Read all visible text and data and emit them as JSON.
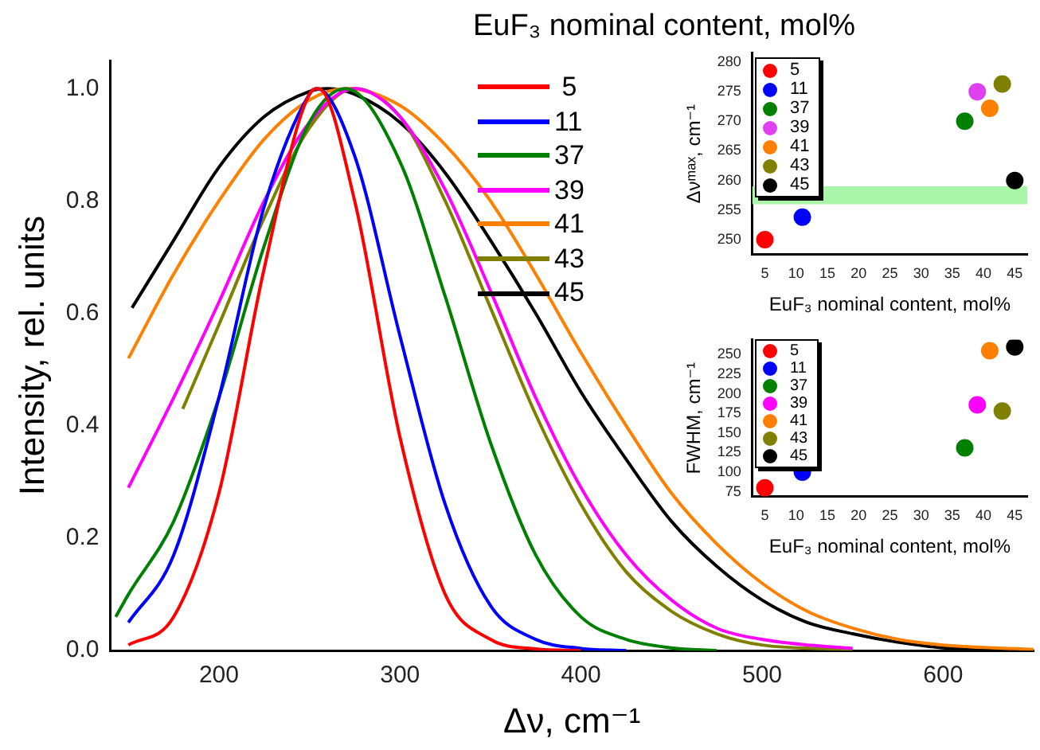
{
  "chart_data": [
    {
      "type": "line",
      "xlabel": "Δν, cm⁻¹",
      "ylabel": "Intensity, rel. units",
      "legend_title": "EuF₃ nominal content, mol%",
      "legend": "top",
      "marker": "none",
      "line_style": "solid",
      "grid": false,
      "xlim": [
        140,
        650
      ],
      "xticks": [
        200,
        300,
        400,
        500,
        600
      ],
      "ylim": [
        0,
        1.05
      ],
      "yticks": [
        {
          "value": 0,
          "label": "0.0"
        },
        {
          "value": 0.2,
          "label": "0.2"
        },
        {
          "value": 0.4,
          "label": "0.4"
        },
        {
          "value": 0.6,
          "label": "0.6"
        },
        {
          "value": 0.8,
          "label": "0.8"
        },
        {
          "value": 1,
          "label": "1.0"
        }
      ],
      "series": [
        {
          "name": " 5",
          "color": "#ff0000",
          "x": [
            150,
            175,
            200,
            225,
            250,
            255,
            275,
            300,
            325,
            350,
            375,
            400
          ],
          "values": [
            0.01,
            0.06,
            0.28,
            0.68,
            0.99,
            1.0,
            0.8,
            0.38,
            0.1,
            0.02,
            0.003,
            0
          ]
        },
        {
          "name": "11",
          "color": "#0000ff",
          "x": [
            150,
            175,
            200,
            225,
            250,
            254,
            275,
            300,
            325,
            350,
            375,
            400,
            425
          ],
          "values": [
            0.05,
            0.17,
            0.45,
            0.79,
            0.99,
            1.0,
            0.88,
            0.56,
            0.26,
            0.08,
            0.02,
            0.004,
            0
          ]
        },
        {
          "name": "37",
          "color": "#008000",
          "x": [
            143,
            150,
            175,
            200,
            225,
            250,
            270,
            300,
            325,
            350,
            375,
            400,
            425,
            450,
            475
          ],
          "values": [
            0.06,
            0.1,
            0.23,
            0.45,
            0.72,
            0.94,
            1.0,
            0.87,
            0.63,
            0.37,
            0.17,
            0.06,
            0.02,
            0.005,
            0
          ]
        },
        {
          "name": "39",
          "color": "#ff00ff",
          "x": [
            150,
            175,
            200,
            225,
            250,
            275,
            300,
            325,
            350,
            375,
            400,
            425,
            450,
            475,
            500,
            525,
            550
          ],
          "values": [
            0.29,
            0.45,
            0.62,
            0.8,
            0.94,
            1.0,
            0.95,
            0.82,
            0.64,
            0.45,
            0.29,
            0.17,
            0.09,
            0.04,
            0.02,
            0.01,
            0.004
          ]
        },
        {
          "name": "41",
          "color": "#ff8000",
          "x": [
            150,
            175,
            200,
            225,
            250,
            270,
            300,
            325,
            350,
            375,
            400,
            425,
            450,
            475,
            500,
            525,
            550,
            575,
            600,
            650
          ],
          "values": [
            0.52,
            0.67,
            0.8,
            0.91,
            0.98,
            1.0,
            0.97,
            0.9,
            0.8,
            0.67,
            0.53,
            0.4,
            0.28,
            0.19,
            0.12,
            0.07,
            0.04,
            0.02,
            0.01,
            0.002
          ]
        },
        {
          "name": "43",
          "color": "#808000",
          "x": [
            180,
            200,
            225,
            250,
            275,
            300,
            325,
            350,
            375,
            400,
            425,
            450,
            475,
            500,
            550
          ],
          "values": [
            0.43,
            0.58,
            0.77,
            0.93,
            1.0,
            0.95,
            0.8,
            0.61,
            0.42,
            0.26,
            0.14,
            0.07,
            0.03,
            0.01,
            0.002
          ]
        },
        {
          "name": "45",
          "color": "#000000",
          "x": [
            152,
            175,
            200,
            225,
            250,
            260,
            275,
            300,
            325,
            350,
            375,
            400,
            425,
            450,
            475,
            500,
            525,
            550,
            575,
            600,
            650
          ],
          "values": [
            0.61,
            0.73,
            0.86,
            0.95,
            0.995,
            1.0,
            0.99,
            0.94,
            0.85,
            0.73,
            0.6,
            0.46,
            0.34,
            0.23,
            0.15,
            0.09,
            0.05,
            0.03,
            0.015,
            0.005,
            0.001
          ]
        }
      ]
    },
    {
      "type": "scatter",
      "xlabel": "EuF₃ nominal content, mol%",
      "ylabel": "Δνᵐᵃˣ, cm⁻¹",
      "legend": "top left",
      "marker": "circle",
      "grid": false,
      "xlim": [
        3,
        47
      ],
      "xticks": [
        5,
        10,
        15,
        20,
        25,
        30,
        35,
        40,
        45
      ],
      "ylim": [
        247.5,
        281.5
      ],
      "yticks": [
        250,
        255,
        260,
        265,
        270,
        275,
        280
      ],
      "bands": [
        {
          "axis": "y",
          "from": 256,
          "to": 259,
          "color": "#aaf5aa"
        }
      ],
      "series": [
        {
          "name": "5",
          "color": "#ff0000",
          "x": [
            5
          ],
          "values": [
            250
          ]
        },
        {
          "name": "11",
          "color": "#0000ff",
          "x": [
            11
          ],
          "values": [
            253.8
          ]
        },
        {
          "name": "37",
          "color": "#008000",
          "x": [
            37
          ],
          "values": [
            270
          ]
        },
        {
          "name": "39",
          "color": "#e040f0",
          "x": [
            39
          ],
          "values": [
            275
          ]
        },
        {
          "name": "41",
          "color": "#ff8000",
          "x": [
            41
          ],
          "values": [
            272.2
          ]
        },
        {
          "name": "43",
          "color": "#808000",
          "x": [
            43
          ],
          "values": [
            276.3
          ]
        },
        {
          "name": "45",
          "color": "#000000",
          "x": [
            45
          ],
          "values": [
            260
          ]
        }
      ]
    },
    {
      "type": "scatter",
      "xlabel": "EuF₃ nominal content, mol%",
      "ylabel": "FWHM, cm⁻¹",
      "legend": "top left",
      "marker": "circle",
      "grid": false,
      "xlim": [
        3,
        47
      ],
      "xticks": [
        5,
        10,
        15,
        20,
        25,
        30,
        35,
        40,
        45
      ],
      "ylim": [
        69,
        269
      ],
      "yticks": [
        75,
        100,
        125,
        150,
        175,
        200,
        225,
        250
      ],
      "series": [
        {
          "name": "5",
          "color": "#ff0000",
          "x": [
            5
          ],
          "values": [
            80
          ]
        },
        {
          "name": "11",
          "color": "#0000ff",
          "x": [
            11
          ],
          "values": [
            100
          ]
        },
        {
          "name": "37",
          "color": "#008000",
          "x": [
            37
          ],
          "values": [
            131
          ]
        },
        {
          "name": "39",
          "color": "#ff00ff",
          "x": [
            39
          ],
          "values": [
            186
          ]
        },
        {
          "name": "41",
          "color": "#ff8000",
          "x": [
            41
          ],
          "values": [
            255
          ]
        },
        {
          "name": "43",
          "color": "#808000",
          "x": [
            43
          ],
          "values": [
            178
          ]
        },
        {
          "name": "45",
          "color": "#000000",
          "x": [
            45
          ],
          "values": [
            260
          ]
        }
      ]
    }
  ]
}
